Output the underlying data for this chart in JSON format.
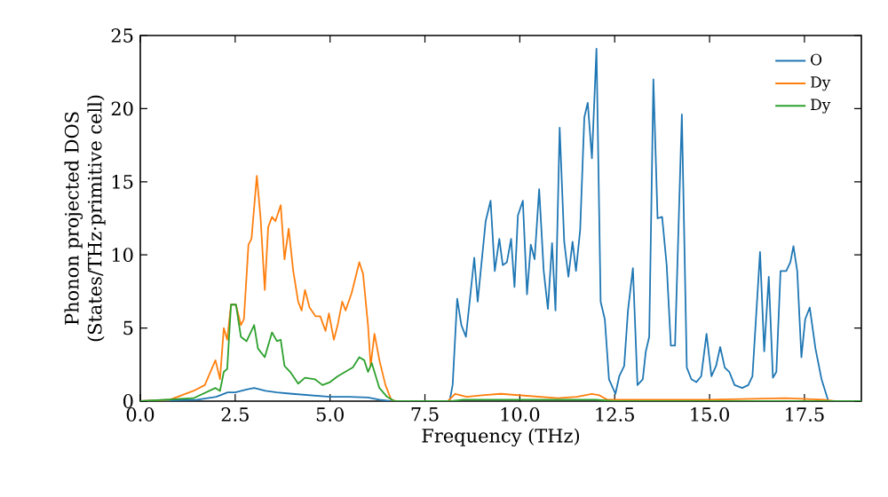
{
  "chart_data": {
    "type": "line",
    "xlabel": "Frequency (THz)",
    "ylabel": "Phonon projected DOS\n(States/THz·primitive cell)",
    "xlim": [
      0,
      19
    ],
    "ylim": [
      0,
      25
    ],
    "xticks": [
      {
        "value": 0,
        "label": "0.0"
      },
      {
        "value": 2.5,
        "label": "2.5"
      },
      {
        "value": 5,
        "label": "5.0"
      },
      {
        "value": 7.5,
        "label": "7.5"
      },
      {
        "value": 10,
        "label": "10.0"
      },
      {
        "value": 12.5,
        "label": "12.5"
      },
      {
        "value": 15,
        "label": "15.0"
      },
      {
        "value": 17.5,
        "label": "17.5"
      }
    ],
    "yticks": [
      0,
      5,
      10,
      15,
      20,
      25
    ],
    "legend": "top right",
    "series": [
      {
        "name": "O",
        "color": "#1f77b4",
        "x": [
          0,
          1.5,
          2.0,
          2.3,
          2.5,
          2.8,
          3.0,
          3.3,
          3.6,
          4.0,
          4.5,
          5.0,
          5.5,
          6.0,
          6.3,
          6.6,
          8.15,
          8.23,
          8.35,
          8.46,
          8.58,
          8.8,
          8.89,
          9.1,
          9.23,
          9.34,
          9.46,
          9.55,
          9.66,
          9.77,
          9.86,
          9.95,
          10.08,
          10.19,
          10.29,
          10.39,
          10.51,
          10.63,
          10.74,
          10.85,
          10.94,
          11.05,
          11.17,
          11.28,
          11.39,
          11.48,
          11.59,
          11.7,
          11.79,
          11.9,
          12.02,
          12.13,
          12.24,
          12.35,
          12.52,
          12.62,
          12.75,
          12.85,
          12.98,
          13.1,
          13.24,
          13.32,
          13.41,
          13.52,
          13.63,
          13.75,
          13.87,
          13.98,
          14.09,
          14.27,
          14.4,
          14.52,
          14.65,
          14.78,
          14.92,
          15.05,
          15.17,
          15.28,
          15.4,
          15.52,
          15.66,
          15.86,
          16.02,
          16.13,
          16.33,
          16.44,
          16.56,
          16.67,
          16.76,
          16.87,
          17.02,
          17.13,
          17.21,
          17.31,
          17.42,
          17.52,
          17.64,
          17.79,
          17.95,
          18.13,
          19
        ],
        "values": [
          0,
          0.1,
          0.3,
          0.6,
          0.6,
          0.8,
          0.9,
          0.7,
          0.6,
          0.5,
          0.4,
          0.3,
          0.3,
          0.25,
          0.1,
          0,
          0,
          1.1,
          7.0,
          5.2,
          4.4,
          9.8,
          6.8,
          12.3,
          13.7,
          8.9,
          11.1,
          9.3,
          9.5,
          11.1,
          7.8,
          12.7,
          13.7,
          7.3,
          10.7,
          9.7,
          14.5,
          8.9,
          6.3,
          10.8,
          6.2,
          18.7,
          10.9,
          8.5,
          10.9,
          8.9,
          11.7,
          19.4,
          20.4,
          16.6,
          24.1,
          6.8,
          5.6,
          1.5,
          0.5,
          1.7,
          2.4,
          6.2,
          9.1,
          1.1,
          1.5,
          3.4,
          4.4,
          22.0,
          12.5,
          12.6,
          9.3,
          3.8,
          3.8,
          19.6,
          2.3,
          1.5,
          1.3,
          1.7,
          4.6,
          1.7,
          2.4,
          3.7,
          2.3,
          2.0,
          1.1,
          0.9,
          1.1,
          1.7,
          10.2,
          3.4,
          8.5,
          1.6,
          2.0,
          8.9,
          8.9,
          9.5,
          10.6,
          8.9,
          3.0,
          5.6,
          6.4,
          3.6,
          1.5,
          0,
          0
        ]
      },
      {
        "name": "Dy",
        "color": "#ff7f0e",
        "x": [
          0,
          0.78,
          1.4,
          1.7,
          1.98,
          2.1,
          2.2,
          2.29,
          2.39,
          2.52,
          2.65,
          2.73,
          2.85,
          2.93,
          3.07,
          3.17,
          3.28,
          3.37,
          3.47,
          3.56,
          3.7,
          3.8,
          3.91,
          4.03,
          4.16,
          4.25,
          4.34,
          4.46,
          4.62,
          4.74,
          4.88,
          4.97,
          5.1,
          5.2,
          5.32,
          5.41,
          5.57,
          5.77,
          5.87,
          6.0,
          6.07,
          6.17,
          6.3,
          6.46,
          6.61,
          6.76,
          8.1,
          8.3,
          8.6,
          9.0,
          9.5,
          10.0,
          10.5,
          11.0,
          11.5,
          11.9,
          12.1,
          12.3,
          13.0,
          15.0,
          17.0,
          18.0,
          18.3,
          19
        ],
        "values": [
          0,
          0.1,
          0.7,
          1.1,
          2.8,
          1.5,
          5.0,
          4.2,
          6.6,
          6.6,
          5.2,
          5.6,
          10.7,
          11.1,
          15.4,
          12.5,
          7.6,
          11.9,
          12.6,
          12.3,
          13.4,
          9.7,
          11.8,
          8.9,
          6.8,
          6.2,
          7.6,
          6.4,
          5.8,
          5.8,
          4.8,
          6.0,
          4.2,
          5.2,
          6.8,
          6.2,
          7.4,
          9.5,
          8.7,
          5.2,
          2.4,
          4.6,
          2.8,
          1.1,
          0.1,
          0,
          0,
          0.5,
          0.3,
          0.4,
          0.5,
          0.4,
          0.3,
          0.2,
          0.3,
          0.5,
          0.4,
          0.1,
          0.1,
          0.1,
          0.2,
          0.1,
          0,
          0
        ]
      },
      {
        "name": "Dy",
        "color": "#2ca02c",
        "x": [
          0,
          1.4,
          1.98,
          2.1,
          2.2,
          2.29,
          2.39,
          2.52,
          2.65,
          2.8,
          3.0,
          3.1,
          3.28,
          3.47,
          3.6,
          3.7,
          3.8,
          3.95,
          4.16,
          4.34,
          4.6,
          4.8,
          5.0,
          5.2,
          5.4,
          5.6,
          5.77,
          5.9,
          6.0,
          6.1,
          6.3,
          6.5,
          6.7,
          8.2,
          8.5,
          10.0,
          12.0,
          12.5,
          19
        ],
        "values": [
          0,
          0.2,
          0.9,
          0.7,
          2.0,
          2.2,
          6.6,
          6.6,
          4.4,
          4.1,
          5.2,
          3.6,
          3.0,
          4.7,
          4.1,
          4.2,
          2.4,
          2.0,
          1.2,
          1.6,
          1.5,
          1.1,
          1.3,
          1.7,
          2.0,
          2.3,
          3.0,
          2.8,
          2.0,
          2.6,
          0.9,
          0.3,
          0,
          0,
          0.1,
          0.1,
          0.1,
          0,
          0
        ]
      }
    ]
  }
}
